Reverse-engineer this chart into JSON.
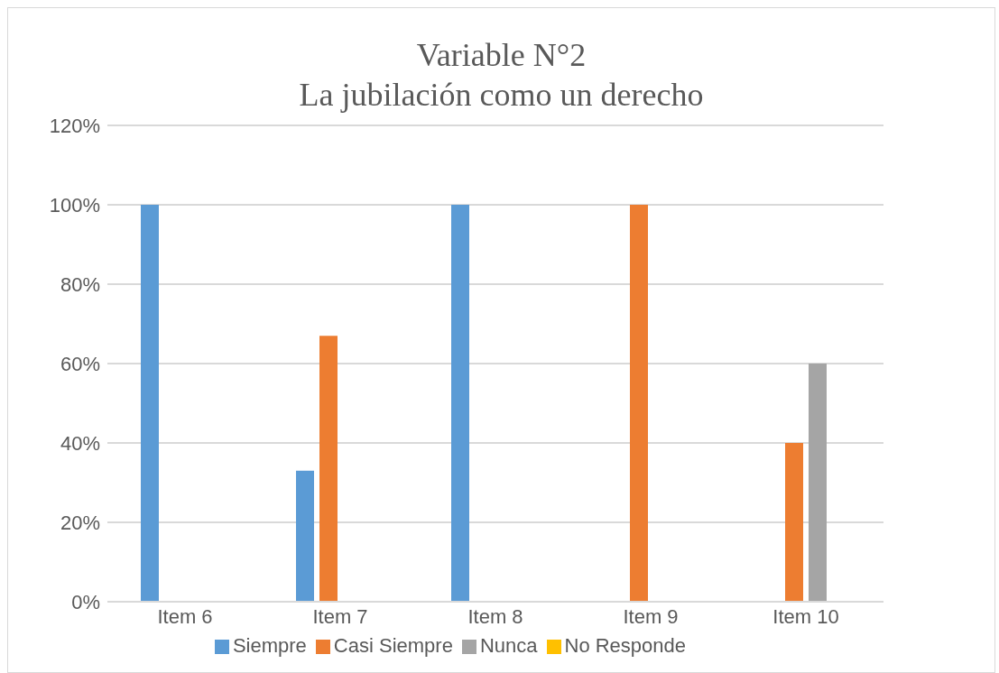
{
  "chart_data": {
    "type": "bar",
    "title": "Variable N°2",
    "subtitle": "La jubilación como un derecho",
    "categories": [
      "Item 6",
      "Item 7",
      "Item 8",
      "Item 9",
      "Item 10"
    ],
    "series": [
      {
        "name": "Siempre",
        "color": "#5b9bd5",
        "values": [
          100,
          33,
          100,
          0,
          0
        ]
      },
      {
        "name": "Casi Siempre",
        "color": "#ed7d31",
        "values": [
          0,
          67,
          0,
          100,
          40
        ]
      },
      {
        "name": "Nunca",
        "color": "#a5a5a5",
        "values": [
          0,
          0,
          0,
          0,
          60
        ]
      },
      {
        "name": "No Responde",
        "color": "#ffc000",
        "values": [
          0,
          0,
          0,
          0,
          0
        ]
      }
    ],
    "ylim": [
      0,
      120
    ],
    "yticks": [
      {
        "value": 0,
        "label": "0%"
      },
      {
        "value": 20,
        "label": "20%"
      },
      {
        "value": 40,
        "label": "40%"
      },
      {
        "value": 60,
        "label": "60%"
      },
      {
        "value": 80,
        "label": "80%"
      },
      {
        "value": 100,
        "label": "100%"
      },
      {
        "value": 120,
        "label": "120%"
      }
    ],
    "grid": "y",
    "legend": "bottom"
  }
}
